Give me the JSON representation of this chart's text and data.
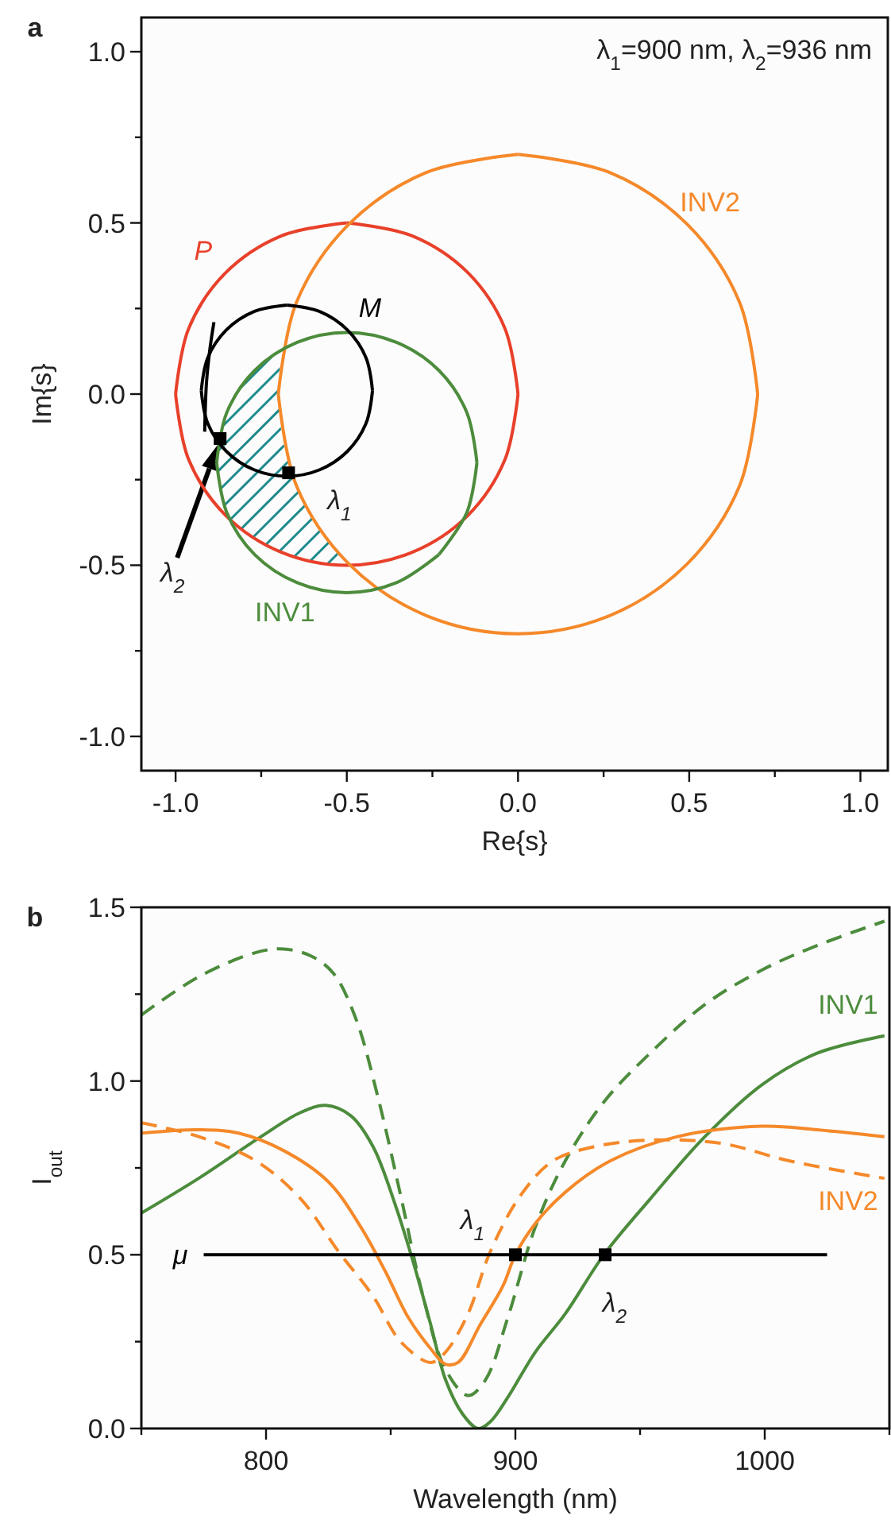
{
  "chart_data": [
    {
      "type": "line",
      "title": "a",
      "xlabel": "Re{s}",
      "ylabel": "Im{s}",
      "xlim": [
        -1.1,
        1.08
      ],
      "ylim": [
        -1.1,
        1.1
      ],
      "xticks": [
        {
          "value": -1,
          "label": "-1.0"
        },
        {
          "value": -0.75,
          "label": null
        },
        {
          "value": -0.5,
          "label": "-0.5"
        },
        {
          "value": -0.25,
          "label": null
        },
        {
          "value": 0,
          "label": "0.0"
        },
        {
          "value": 0.25,
          "label": null
        },
        {
          "value": 0.5,
          "label": "0.5"
        },
        {
          "value": 0.75,
          "label": null
        },
        {
          "value": 1,
          "label": "1.0"
        }
      ],
      "yticks": [
        {
          "value": -1,
          "label": "-1.0"
        },
        {
          "value": -0.75,
          "label": null
        },
        {
          "value": -0.5,
          "label": "-0.5"
        },
        {
          "value": -0.25,
          "label": null
        },
        {
          "value": 0,
          "label": "0.0"
        },
        {
          "value": 0.25,
          "label": null
        },
        {
          "value": 0.5,
          "label": "0.5"
        },
        {
          "value": 0.75,
          "label": null
        },
        {
          "value": 1,
          "label": "1.0"
        }
      ],
      "annotations": [
        "λ$_{1}$=900 nm, λ$_{2}$=936 nm",
        {
          "text": "λ$_{1}$",
          "x": -0.67,
          "y": -0.23
        },
        "λ$_{2}$"
      ],
      "series": [
        {
          "name": "P",
          "color": "#e8402a",
          "x": [
            -0.5,
            -0.691,
            -0.854,
            -0.962,
            -1.0
          ],
          "values": [
            0.5,
            0.462,
            0.354,
            0.191,
            0
          ]
        },
        {
          "color": "#e8402a",
          "x": [
            -1.0,
            -0.962,
            -0.854,
            -0.691,
            -0.5,
            -0.309,
            -0.146,
            -0.038,
            0
          ],
          "values": [
            0,
            -0.191,
            -0.354,
            -0.462,
            -0.5,
            -0.462,
            -0.354,
            -0.191,
            0
          ]
        },
        {
          "color": "#e8402a",
          "x": [
            0,
            -0.038,
            -0.146,
            -0.309,
            -0.5
          ],
          "values": [
            0,
            0.191,
            0.354,
            0.462,
            0.5
          ]
        },
        {
          "name": "INV2",
          "color": "#f5892a",
          "x": [
            0.7,
            0.647,
            0.495,
            0.268,
            0
          ],
          "values": [
            0,
            0.268,
            0.495,
            0.647,
            0.7
          ]
        },
        {
          "color": "#f5892a",
          "x": [
            0,
            -0.268,
            -0.495,
            -0.647,
            -0.7
          ],
          "values": [
            0.7,
            0.647,
            0.495,
            0.268,
            0
          ]
        },
        {
          "color": "#f5892a",
          "x": [
            -0.7,
            -0.647,
            -0.495,
            -0.268,
            0,
            0.268,
            0.495,
            0.647,
            0.7
          ],
          "values": [
            0,
            -0.268,
            -0.495,
            -0.647,
            -0.7,
            -0.647,
            -0.495,
            -0.268,
            0
          ]
        },
        {
          "name": "INV1",
          "color": "#4c8c3c",
          "x": [
            -0.88,
            -0.851,
            -0.769,
            -0.645,
            -0.5,
            -0.355,
            -0.231
          ],
          "values": [
            -0.2,
            -0.345,
            -0.469,
            -0.551,
            -0.58,
            -0.551,
            -0.469
          ]
        },
        {
          "color": "#4c8c3c",
          "x": [
            -0.231,
            -0.149,
            -0.12
          ],
          "values": [
            -0.469,
            -0.345,
            -0.2
          ]
        },
        {
          "color": "#4c8c3c",
          "x": [
            -0.12,
            -0.149,
            -0.231,
            -0.355,
            -0.5,
            -0.645,
            -0.769,
            -0.851,
            -0.88
          ],
          "values": [
            -0.2,
            -0.055,
            0.069,
            0.151,
            0.18,
            0.151,
            0.069,
            -0.055,
            -0.2
          ]
        },
        {
          "name": "M",
          "color": "#000000",
          "x": [
            -0.425,
            -0.444,
            -0.498,
            -0.579,
            -0.675
          ],
          "values": [
            0.01,
            0.106,
            0.187,
            0.241,
            0.26
          ]
        },
        {
          "color": "#000000",
          "x": [
            -0.675,
            -0.771,
            -0.852,
            -0.906,
            -0.925
          ],
          "values": [
            0.26,
            0.241,
            0.187,
            0.106,
            0.01
          ]
        },
        {
          "color": "#000000",
          "x": [
            -0.925,
            -0.906,
            -0.852,
            -0.771,
            -0.675,
            -0.579,
            -0.498,
            -0.444,
            -0.425
          ],
          "values": [
            0.01,
            -0.086,
            -0.167,
            -0.221,
            -0.24,
            -0.221,
            -0.167,
            -0.086,
            0.01
          ]
        },
        {
          "color": "#000000",
          "x": [
            -0.888,
            -0.9,
            -0.91,
            -0.915
          ],
          "values": [
            0.21,
            0.13,
            0.03,
            -0.11
          ]
        },
        {
          "type": "scatter",
          "marker": "square",
          "color": "#000000",
          "x": [
            -0.67,
            -0.87
          ],
          "values": [
            -0.23,
            -0.13
          ]
        }
      ]
    },
    {
      "type": "line",
      "title": "b",
      "xlabel": "Wavelength (nm)",
      "ylabel": "I$_{out}$",
      "xlim": [
        750,
        1050
      ],
      "ylim": [
        0,
        1.5
      ],
      "xticks": [
        {
          "value": 750,
          "label": null
        },
        800,
        {
          "value": 850,
          "label": null
        },
        900,
        {
          "value": 950,
          "label": null
        },
        1000,
        {
          "value": 1050,
          "label": null
        }
      ],
      "yticks": [
        {
          "value": 0,
          "label": "0.0"
        },
        {
          "value": 0.25,
          "label": null
        },
        {
          "value": 0.5,
          "label": "0.5"
        },
        {
          "value": 0.75,
          "label": null
        },
        {
          "value": 1,
          "label": "1.0"
        },
        {
          "value": 1.25,
          "label": null
        },
        {
          "value": 1.5,
          "label": "1.5"
        }
      ],
      "annotations": [
        {
          "text": "λ$_{1}$",
          "x": 900,
          "y": 0.5
        },
        {
          "text": "λ$_{2}$",
          "x": 936,
          "y": 0.5
        }
      ],
      "series": [
        {
          "name": "INV1",
          "color": "#4c8c3c",
          "x": [
            750,
            773,
            798,
            814,
            824,
            834,
            843,
            852,
            859,
            866,
            872,
            879,
            885,
            890,
            897,
            908,
            920,
            935.5,
            954,
            976,
            999,
            1021,
            1048
          ],
          "values": [
            0.62,
            0.72,
            0.84,
            0.91,
            0.93,
            0.9,
            0.81,
            0.64,
            0.48,
            0.3,
            0.14,
            0.04,
            0,
            0.02,
            0.09,
            0.22,
            0.33,
            0.5,
            0.66,
            0.84,
            0.99,
            1.08,
            1.13
          ]
        },
        {
          "color": "#4c8c3c",
          "line_style": "dashed",
          "x": [
            750,
            773,
            796,
            807,
            818,
            827,
            836,
            845,
            854,
            863,
            872,
            881,
            888,
            897,
            908,
            920,
            935.5,
            954,
            976,
            999,
            1021,
            1048
          ],
          "values": [
            1.19,
            1.3,
            1.37,
            1.38,
            1.36,
            1.31,
            1.18,
            0.95,
            0.67,
            0.38,
            0.17,
            0.095,
            0.14,
            0.32,
            0.58,
            0.77,
            0.94,
            1.08,
            1.22,
            1.32,
            1.39,
            1.46
          ]
        },
        {
          "name": "INV2",
          "color": "#f5892a",
          "x": [
            750,
            773,
            789,
            807,
            825,
            838,
            848,
            857,
            866,
            872,
            877,
            886,
            895,
            900,
            908,
            920,
            938,
            965,
            999,
            1021,
            1048
          ],
          "values": [
            0.85,
            0.86,
            0.85,
            0.8,
            0.71,
            0.58,
            0.45,
            0.32,
            0.23,
            0.185,
            0.19,
            0.3,
            0.41,
            0.5,
            0.59,
            0.68,
            0.77,
            0.84,
            0.87,
            0.86,
            0.84
          ]
        },
        {
          "color": "#f5892a",
          "line_style": "dashed",
          "x": [
            750,
            773,
            796,
            814,
            829,
            843,
            854,
            866,
            872,
            881,
            890,
            902,
            915,
            931,
            954,
            983,
            1010,
            1048
          ],
          "values": [
            0.88,
            0.84,
            0.77,
            0.66,
            0.51,
            0.38,
            0.25,
            0.19,
            0.22,
            0.33,
            0.51,
            0.67,
            0.77,
            0.81,
            0.83,
            0.82,
            0.77,
            0.72
          ]
        },
        {
          "name": "μ",
          "color": "#000000",
          "x": [
            775,
            1025
          ],
          "values": [
            0.5,
            0.5
          ]
        },
        {
          "type": "scatter",
          "marker": "square",
          "color": "#000000",
          "x": [
            900,
            936
          ],
          "values": [
            0.5,
            0.5
          ]
        }
      ]
    }
  ]
}
